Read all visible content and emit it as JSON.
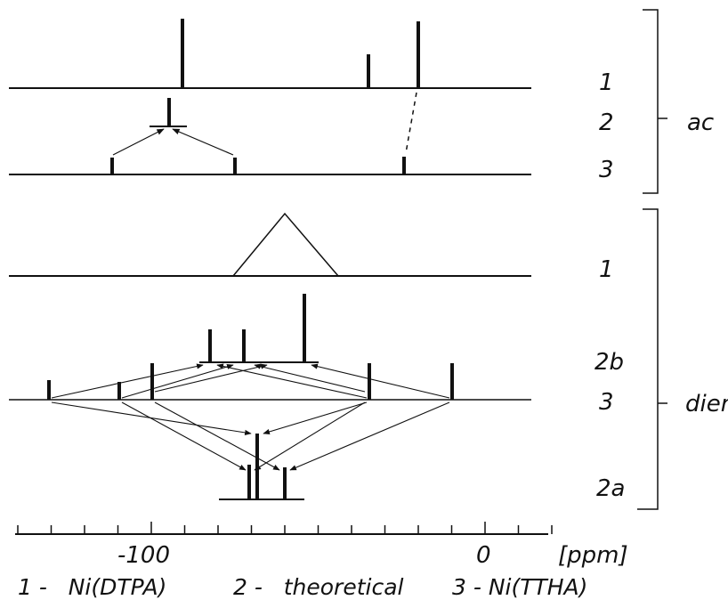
{
  "row_labels": {
    "ac": [
      "1",
      "2",
      "3"
    ],
    "dien": [
      "1",
      "2b",
      "3",
      "2a"
    ]
  },
  "group_labels": [
    "ac",
    "dien"
  ],
  "axis": {
    "unit": "[ppm]",
    "tick_labels": [
      "-100",
      "0"
    ],
    "major_ticks": [
      -100,
      0
    ],
    "minor_ticks": [
      -140,
      -130,
      -120,
      -110,
      -90,
      -80,
      -70,
      -60,
      -50,
      -40,
      -30,
      -20,
      -10,
      10,
      20
    ]
  },
  "legend": [
    "1 -   Ni(DTPA)",
    "2 -   theoretical",
    "3 - Ni(TTHA)"
  ],
  "chart_data": {
    "type": "stick-spectrum",
    "x_unit": "ppm",
    "xlim": [
      -143,
      14
    ],
    "groups": [
      {
        "name": "ac",
        "spectra": [
          {
            "label": "1",
            "lines": [
              {
                "ppm": -91,
                "rel_height": 1.0
              },
              {
                "ppm": -35,
                "rel_height": 0.5
              },
              {
                "ppm": -20,
                "rel_height": 1.0
              }
            ]
          },
          {
            "label": "2",
            "lines": [
              {
                "ppm": -95,
                "rel_height": 1.0
              }
            ]
          },
          {
            "label": "3",
            "lines": [
              {
                "ppm": -112,
                "rel_height": 1.0
              },
              {
                "ppm": -75,
                "rel_height": 1.0
              },
              {
                "ppm": -24,
                "rel_height": 1.0
              }
            ]
          }
        ]
      },
      {
        "name": "dien",
        "spectra": [
          {
            "label": "1",
            "broad_peak": {
              "center_ppm": -60,
              "width_ppm": 31
            }
          },
          {
            "label": "2b",
            "lines": [
              {
                "ppm": -82,
                "rel_height": 0.55
              },
              {
                "ppm": -72,
                "rel_height": 0.55
              },
              {
                "ppm": -54,
                "rel_height": 1.0
              }
            ]
          },
          {
            "label": "3",
            "lines": [
              {
                "ppm": -130,
                "rel_height": 0.5
              },
              {
                "ppm": -109,
                "rel_height": 0.5
              },
              {
                "ppm": -99,
                "rel_height": 1.0
              },
              {
                "ppm": -35,
                "rel_height": 1.0
              },
              {
                "ppm": -10,
                "rel_height": 1.0
              }
            ]
          },
          {
            "label": "2a",
            "lines": [
              {
                "ppm": -69,
                "rel_height": 0.7
              },
              {
                "ppm": -68,
                "rel_height": 1.0
              },
              {
                "ppm": -60,
                "rel_height": 0.6
              }
            ]
          }
        ]
      }
    ]
  }
}
